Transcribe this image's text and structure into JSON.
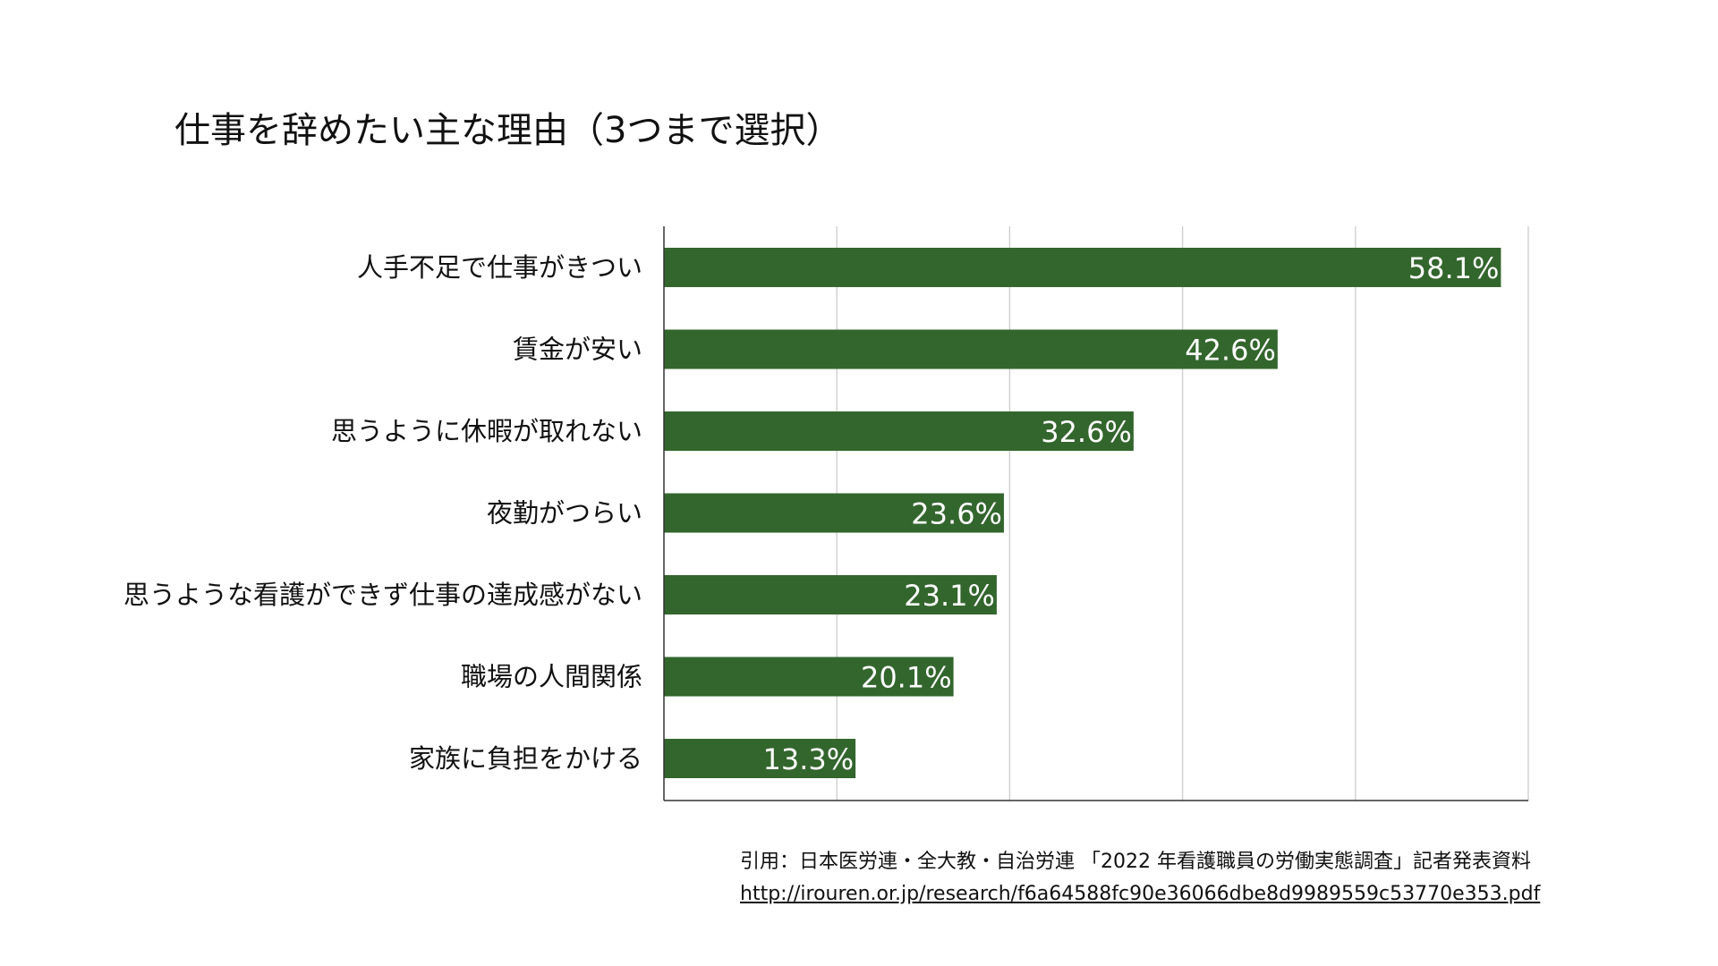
{
  "chart_data": {
    "type": "bar",
    "orientation": "horizontal",
    "title": "仕事を辞めたい主な理由（3つまで選択）",
    "xlabel": "",
    "ylabel": "",
    "categories": [
      "人手不足で仕事がきつい",
      "賃金が安い",
      "思うように休暇が取れない",
      "夜勤がつらい",
      "思うような看護ができず仕事の達成感がない",
      "職場の人間関係",
      "家族に負担をかける"
    ],
    "values": [
      58.1,
      42.6,
      32.6,
      23.6,
      23.1,
      20.1,
      13.3
    ],
    "data_labels": [
      "58.1%",
      "42.6%",
      "32.6%",
      "23.6%",
      "23.1%",
      "20.1%",
      "13.3%"
    ],
    "xlim": [
      0,
      60
    ],
    "gridlines": [
      0,
      12,
      24,
      36,
      48,
      60
    ],
    "grid": true,
    "legend": "none",
    "bar_color": "#33662d",
    "grid_color": "#cccccc",
    "axis_color": "#333333",
    "label_color": "#ffffff"
  },
  "source": {
    "citation": "引用：日本医労連・全大教・自治労連 「2022 年看護職員の労働実態調査」記者発表資料",
    "url": "http://irouren.or.jp/research/f6a64588fc90e36066dbe8d9989559c53770e353.pdf"
  }
}
